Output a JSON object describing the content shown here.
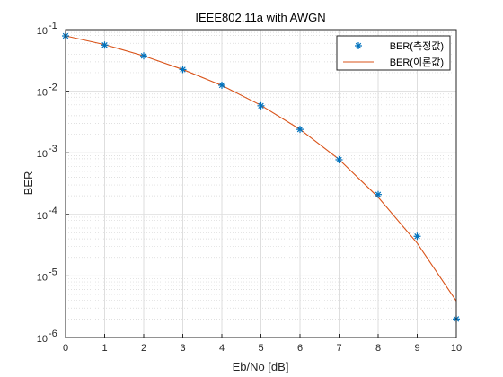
{
  "chart_data": {
    "type": "line",
    "title": "IEEE802.11a with AWGN",
    "xlabel": "Eb/No [dB]",
    "ylabel": "BER",
    "xlim": [
      0,
      10
    ],
    "ylim": [
      1e-06,
      0.1
    ],
    "yscale": "log",
    "grid": true,
    "minor_grid": true,
    "legend_position": "top-right",
    "x_ticks": [
      "0",
      "1",
      "2",
      "3",
      "4",
      "5",
      "6",
      "7",
      "8",
      "9",
      "10"
    ],
    "y_ticks": [
      {
        "base": "10",
        "exp": "-6"
      },
      {
        "base": "10",
        "exp": "-5"
      },
      {
        "base": "10",
        "exp": "-4"
      },
      {
        "base": "10",
        "exp": "-3"
      },
      {
        "base": "10",
        "exp": "-2"
      },
      {
        "base": "10",
        "exp": "-1"
      }
    ],
    "x": [
      0,
      1,
      2,
      3,
      4,
      5,
      6,
      7,
      8,
      9,
      10
    ],
    "series": [
      {
        "name": "BER(측정값)",
        "style": "marker",
        "marker": "*",
        "color": "#0072BD",
        "values": [
          0.079,
          0.056,
          0.0375,
          0.0225,
          0.0125,
          0.0058,
          0.0024,
          0.00077,
          0.00021,
          4.4e-05,
          2e-06
        ]
      },
      {
        "name": "BER(이론값)",
        "style": "line",
        "color": "#D95319",
        "values": [
          0.079,
          0.057,
          0.0375,
          0.0225,
          0.0124,
          0.0059,
          0.0024,
          0.00078,
          0.00019,
          3.4e-05,
          3.9e-06
        ]
      }
    ]
  }
}
